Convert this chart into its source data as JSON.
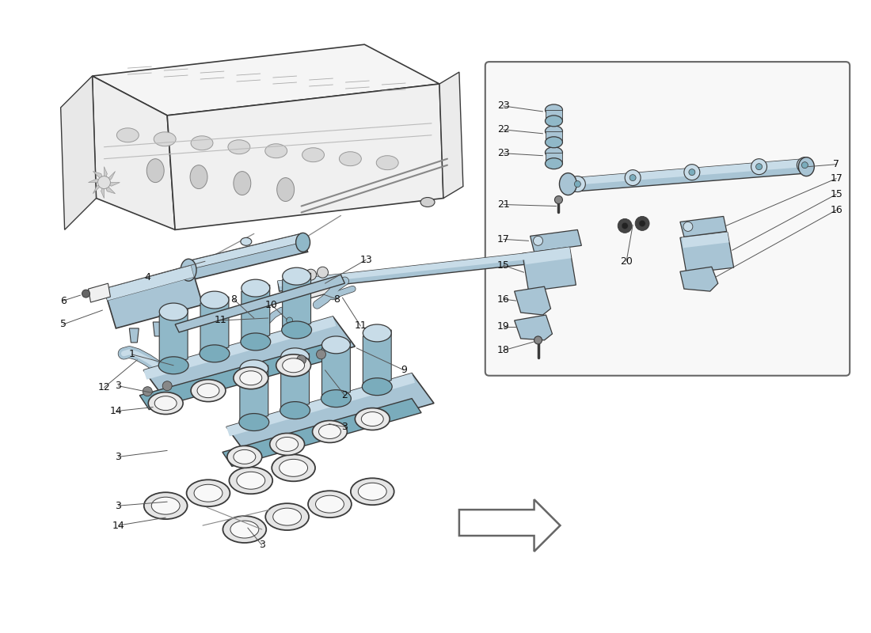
{
  "bg_color": "#ffffff",
  "part_blue": "#a8c4d4",
  "part_blue_light": "#c8dce8",
  "part_blue_dark": "#7aacbc",
  "part_blue_mid": "#90b8c8",
  "outline_color": "#3a3a3a",
  "thin_line": "#555555",
  "label_color": "#111111",
  "engine_outline": "#444444",
  "inset_bg": "#f8f8f8",
  "inset_border": "#666666",
  "arrow_fill": "#ffffff",
  "arrow_stroke": "#555555"
}
